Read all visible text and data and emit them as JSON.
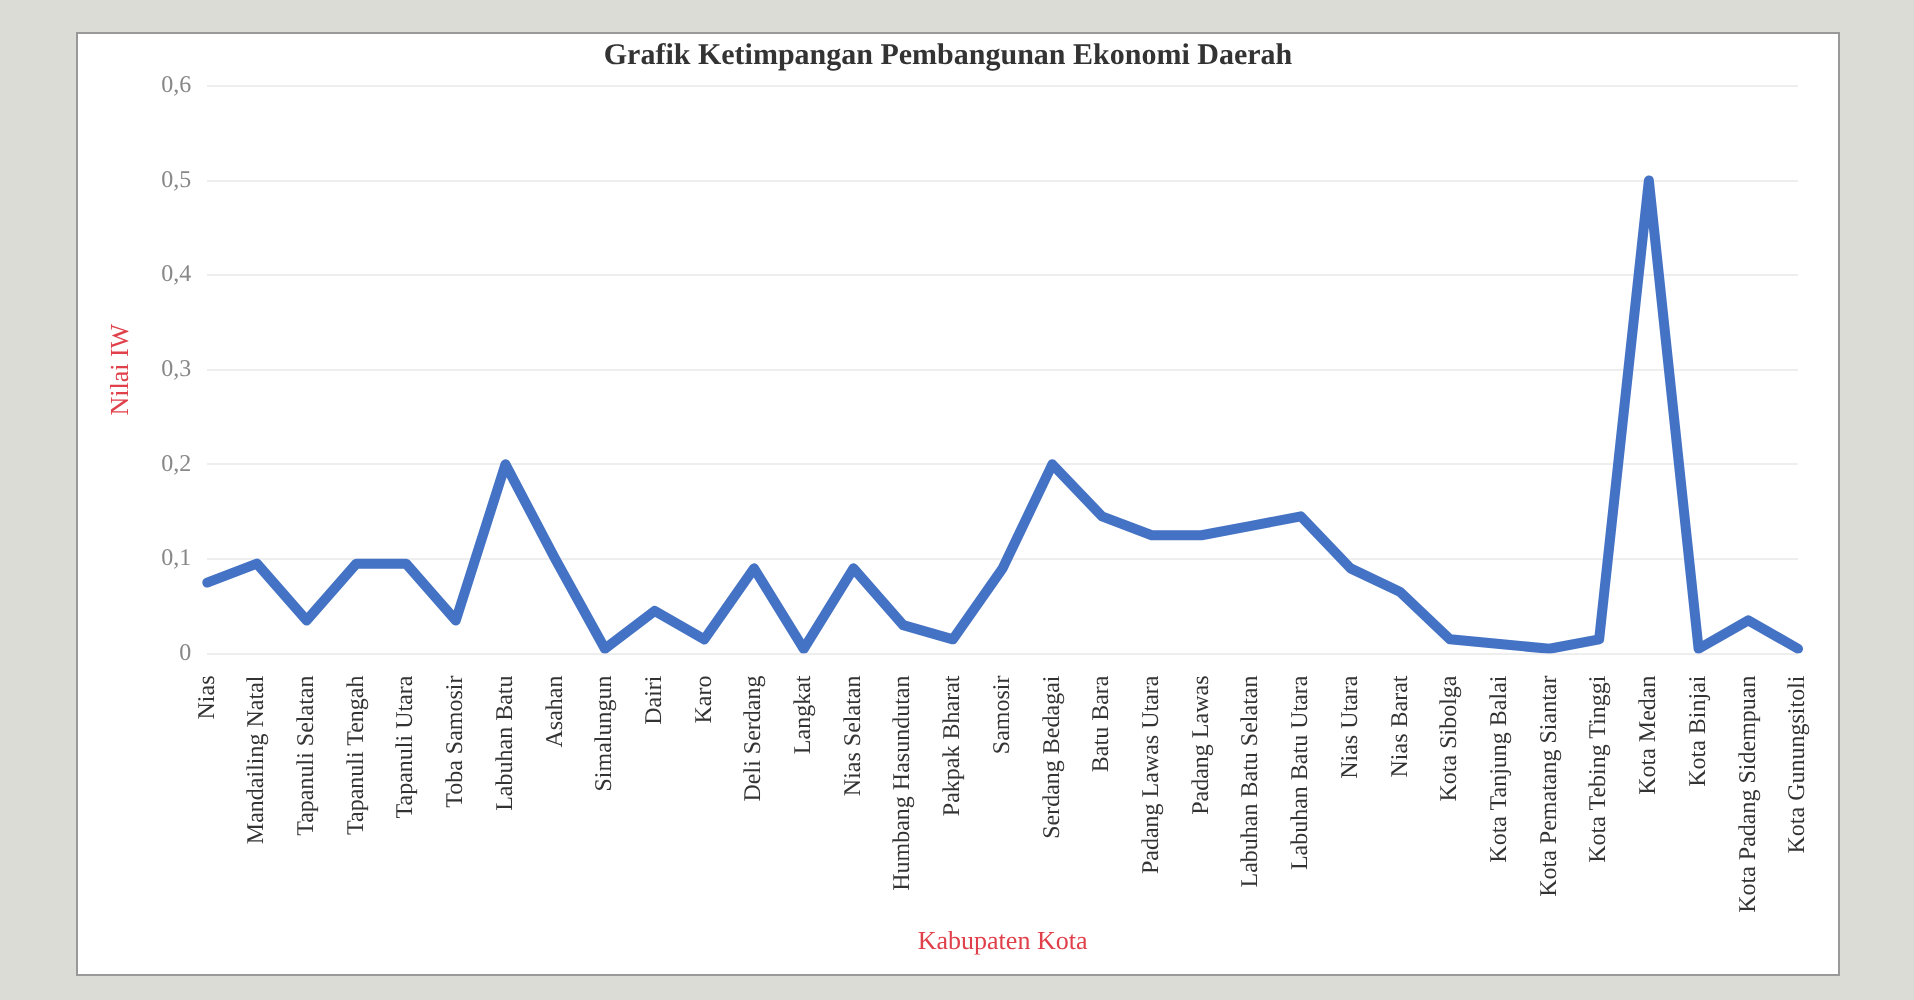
{
  "chart_data": {
    "type": "line",
    "title": "Grafik Ketimpangan Pembangunan Ekonomi Daerah",
    "xlabel": "Kabupaten Kota",
    "ylabel": "Nilai IW",
    "categories": [
      "Nias",
      "Mandailing Natal",
      "Tapanuli Selatan",
      "Tapanuli Tengah",
      "Tapanuli Utara",
      "Toba Samosir",
      "Labuhan Batu",
      "Asahan",
      "Simalungun",
      "Dairi",
      "Karo",
      "Deli Serdang",
      "Langkat",
      "Nias Selatan",
      "Humbang Hasundutan",
      "Pakpak Bharat",
      "Samosir",
      "Serdang Bedagai",
      "Batu Bara",
      "Padang Lawas Utara",
      "Padang Lawas",
      "Labuhan Batu Selatan",
      "Labuhan Batu Utara",
      "Nias Utara",
      "Nias Barat",
      "Kota Sibolga",
      "Kota Tanjung Balai",
      "Kota Pematang Siantar",
      "Kota Tebing Tinggi",
      "Kota Medan",
      "Kota Binjai",
      "Kota Padang Sidempuan",
      "Kota Gunungsitoli"
    ],
    "series": [
      {
        "color": "#4472c4",
        "values": [
          0.075,
          0.095,
          0.035,
          0.095,
          0.095,
          0.035,
          0.2,
          0.1,
          0.005,
          0.045,
          0.015,
          0.09,
          0.005,
          0.09,
          0.03,
          0.015,
          0.09,
          0.2,
          0.145,
          0.125,
          0.125,
          0.135,
          0.145,
          0.09,
          0.065,
          0.015,
          0.01,
          0.005,
          0.015,
          0.5,
          0.005,
          0.035,
          0.005
        ]
      }
    ],
    "ylim": [
      0,
      0.6
    ],
    "yticks": [
      {
        "value": 0,
        "label": "0"
      },
      {
        "value": 0.1,
        "label": "0,1"
      },
      {
        "value": 0.2,
        "label": "0,2"
      },
      {
        "value": 0.3,
        "label": "0,3"
      },
      {
        "value": 0.4,
        "label": "0,4"
      },
      {
        "value": 0.5,
        "label": "0,5"
      },
      {
        "value": 0.6,
        "label": "0,6"
      }
    ],
    "grid": "y",
    "legend": false,
    "marker": "none",
    "line_style": "solid"
  }
}
